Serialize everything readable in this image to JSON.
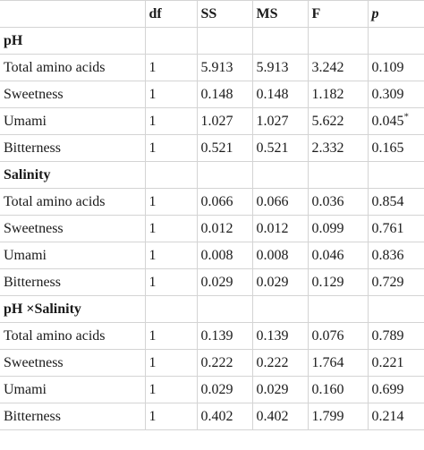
{
  "header": {
    "col0": "",
    "df": "df",
    "ss": "SS",
    "ms": "MS",
    "f": "F",
    "p": "p"
  },
  "groups": [
    {
      "title": "pH",
      "rows": [
        {
          "label": "Total amino acids",
          "df": "1",
          "ss": "5.913",
          "ms": "5.913",
          "f": "3.242",
          "p": "0.109",
          "mark": ""
        },
        {
          "label": "Sweetness",
          "df": "1",
          "ss": "0.148",
          "ms": "0.148",
          "f": "1.182",
          "p": "0.309",
          "mark": ""
        },
        {
          "label": "Umami",
          "df": "1",
          "ss": "1.027",
          "ms": "1.027",
          "f": "5.622",
          "p": "0.045",
          "mark": "*"
        },
        {
          "label": "Bitterness",
          "df": "1",
          "ss": "0.521",
          "ms": "0.521",
          "f": "2.332",
          "p": "0.165",
          "mark": ""
        }
      ]
    },
    {
      "title": "Salinity",
      "rows": [
        {
          "label": "Total amino acids",
          "df": "1",
          "ss": "0.066",
          "ms": "0.066",
          "f": "0.036",
          "p": "0.854",
          "mark": ""
        },
        {
          "label": "Sweetness",
          "df": "1",
          "ss": "0.012",
          "ms": "0.012",
          "f": "0.099",
          "p": "0.761",
          "mark": ""
        },
        {
          "label": "Umami",
          "df": "1",
          "ss": "0.008",
          "ms": "0.008",
          "f": "0.046",
          "p": "0.836",
          "mark": ""
        },
        {
          "label": "Bitterness",
          "df": "1",
          "ss": "0.029",
          "ms": "0.029",
          "f": "0.129",
          "p": "0.729",
          "mark": ""
        }
      ]
    },
    {
      "title": "pH ×Salinity",
      "rows": [
        {
          "label": "Total amino acids",
          "df": "1",
          "ss": "0.139",
          "ms": "0.139",
          "f": "0.076",
          "p": "0.789",
          "mark": ""
        },
        {
          "label": "Sweetness",
          "df": "1",
          "ss": "0.222",
          "ms": "0.222",
          "f": "1.764",
          "p": "0.221",
          "mark": ""
        },
        {
          "label": "Umami",
          "df": "1",
          "ss": "0.029",
          "ms": "0.029",
          "f": "0.160",
          "p": "0.699",
          "mark": ""
        },
        {
          "label": "Bitterness",
          "df": "1",
          "ss": "0.402",
          "ms": "0.402",
          "f": "1.799",
          "p": "0.214",
          "mark": ""
        }
      ]
    }
  ]
}
